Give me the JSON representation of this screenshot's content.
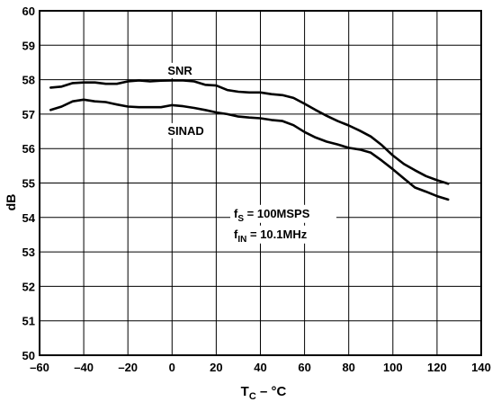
{
  "chart_data": {
    "type": "line",
    "xlabel": {
      "main": "T",
      "sub": "C",
      "rest": " – °C"
    },
    "ylabel": "dB",
    "xlim": [
      -60,
      140
    ],
    "ylim": [
      50,
      60
    ],
    "xticks": [
      -60,
      -40,
      -20,
      0,
      20,
      40,
      60,
      80,
      100,
      120,
      140
    ],
    "xtick_labels": [
      "–60",
      "–40",
      "–20",
      "0",
      "20",
      "40",
      "60",
      "80",
      "100",
      "120",
      "140"
    ],
    "yticks": [
      50,
      51,
      52,
      53,
      54,
      55,
      56,
      57,
      58,
      59,
      60
    ],
    "grid": true,
    "legend": "none",
    "series": [
      {
        "name": "SNR",
        "color": "#000000",
        "x": [
          -55,
          -50,
          -45,
          -40,
          -35,
          -30,
          -25,
          -20,
          -15,
          -10,
          -5,
          0,
          5,
          10,
          15,
          20,
          25,
          30,
          35,
          40,
          45,
          50,
          55,
          60,
          65,
          70,
          75,
          80,
          85,
          90,
          95,
          100,
          105,
          110,
          115,
          120,
          125
        ],
        "y": [
          57.77,
          57.8,
          57.9,
          57.92,
          57.92,
          57.88,
          57.88,
          57.95,
          57.98,
          57.95,
          57.97,
          57.98,
          57.98,
          57.95,
          57.85,
          57.83,
          57.7,
          57.65,
          57.63,
          57.63,
          57.58,
          57.55,
          57.47,
          57.3,
          57.12,
          56.95,
          56.8,
          56.67,
          56.52,
          56.35,
          56.1,
          55.8,
          55.55,
          55.37,
          55.2,
          55.08,
          54.98
        ]
      },
      {
        "name": "SINAD",
        "color": "#000000",
        "x": [
          -55,
          -50,
          -45,
          -40,
          -35,
          -30,
          -25,
          -20,
          -15,
          -10,
          -5,
          0,
          5,
          10,
          15,
          20,
          25,
          30,
          35,
          40,
          45,
          50,
          55,
          60,
          65,
          70,
          75,
          80,
          85,
          90,
          95,
          100,
          105,
          110,
          115,
          120,
          125
        ],
        "y": [
          57.12,
          57.22,
          57.37,
          57.42,
          57.37,
          57.35,
          57.28,
          57.22,
          57.2,
          57.2,
          57.2,
          57.26,
          57.23,
          57.18,
          57.12,
          57.05,
          57.0,
          56.93,
          56.9,
          56.88,
          56.83,
          56.8,
          56.68,
          56.48,
          56.32,
          56.2,
          56.12,
          56.02,
          55.97,
          55.88,
          55.65,
          55.4,
          55.13,
          54.87,
          54.75,
          54.62,
          54.52
        ]
      }
    ],
    "series_labels": [
      {
        "text": "SNR",
        "x": -2,
        "y": 58.15
      },
      {
        "text": "SINAD",
        "x": -2,
        "y": 56.4
      }
    ],
    "annotations": [
      {
        "main": "f",
        "sub": "S",
        "rest": " = 100MSPS",
        "x": 28,
        "y": 54.0
      },
      {
        "main": "f",
        "sub": "IN",
        "rest": " = 10.1MHz",
        "x": 28,
        "y": 53.4
      }
    ]
  }
}
